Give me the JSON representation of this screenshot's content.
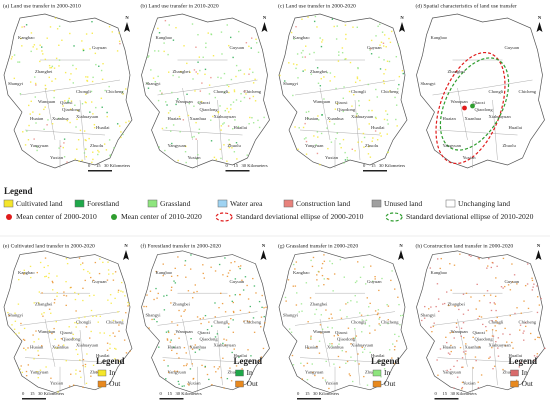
{
  "panels": [
    {
      "title": "(a) Land use transfer in 2000-2010"
    },
    {
      "title": "(b) Land use transfer in 2010-2020"
    },
    {
      "title": "(c) Land use transfer in 2000-2020"
    },
    {
      "title": "(d) Spatial characteristics of land use transfer"
    },
    {
      "title": "(e) Cultivated land transfer in 2000-2020",
      "legend": {
        "title": "Legend",
        "items": [
          {
            "label": "In",
            "color": "#f5e62a"
          },
          {
            "label": "Out",
            "color": "#e8891e"
          }
        ]
      }
    },
    {
      "title": "(f) Forestland transfer in 2000-2020",
      "legend": {
        "title": "Legend",
        "items": [
          {
            "label": "In",
            "color": "#1fa84a"
          },
          {
            "label": "Out",
            "color": "#e8891e"
          }
        ]
      }
    },
    {
      "title": "(g) Grassland transfer in 2000-2020",
      "legend": {
        "title": "Legend",
        "items": [
          {
            "label": "In",
            "color": "#8ee57e"
          },
          {
            "label": "Out",
            "color": "#e8891e"
          }
        ]
      }
    },
    {
      "title": "(h) Construction land transfer in 2000-2020",
      "legend": {
        "title": "Legend",
        "items": [
          {
            "label": "In",
            "color": "#d96b6b"
          },
          {
            "label": "Out",
            "color": "#e8891e"
          }
        ]
      }
    }
  ],
  "places": [
    "Kangbao",
    "Guyuan",
    "Zhangbei",
    "Shangyi",
    "Chongli",
    "Chicheng",
    "Wanquan",
    "Qiaoxi",
    "Qiaodong",
    "Huaian",
    "Xuanhua",
    "Xiahuayuan",
    "Huailai",
    "Yangyuan",
    "Zhuolu",
    "Yuxian"
  ],
  "north": "N",
  "scale": [
    "0",
    "15",
    "30 Kilometers"
  ],
  "legend": {
    "title": "Legend",
    "land_types": [
      {
        "label": "Cultivated land",
        "color": "#f5e62a"
      },
      {
        "label": "Forestland",
        "color": "#1fa84a"
      },
      {
        "label": "Grassland",
        "color": "#8ee57e"
      },
      {
        "label": "Water area",
        "color": "#9fd3f2"
      },
      {
        "label": "Construction land",
        "color": "#e8827c"
      },
      {
        "label": "Unused land",
        "color": "#a0a0a0"
      },
      {
        "label": "Unchanging land",
        "color": "#ffffff"
      }
    ],
    "markers": [
      {
        "label": "Mean center of 2000-2010",
        "color": "#e01b1b",
        "shape": "dot"
      },
      {
        "label": "Mean center of 2010-2020",
        "color": "#2f9d2f",
        "shape": "dot"
      },
      {
        "label": "Standard deviational ellipse of 2000-2010",
        "color": "#e01b1b",
        "shape": "ellipse"
      },
      {
        "label": "Standard deviational ellipse of 2010-2020",
        "color": "#2f9d2f",
        "shape": "ellipse"
      }
    ]
  }
}
